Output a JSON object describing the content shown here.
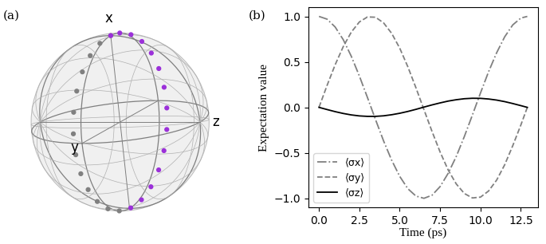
{
  "chart_data": [
    {
      "type": "bloch",
      "title": "(a)",
      "axis_labels": {
        "x": "x",
        "y": "y",
        "z": "z"
      },
      "colors": [
        "#808080",
        "#808080",
        "#808080",
        "#808080",
        "#808080",
        "#808080",
        "#808080",
        "#808080",
        "#808080",
        "#808080",
        "#808080",
        "#808080",
        "#808080",
        "#9b30d9",
        "#9b30d9",
        "#9b30d9",
        "#9b30d9",
        "#9b30d9",
        "#9b30d9",
        "#9b30d9",
        "#9b30d9",
        "#9b30d9",
        "#9b30d9",
        "#9b30d9",
        "#9b30d9",
        "#9b30d9",
        "#9b30d9"
      ]
    },
    {
      "type": "line",
      "title": "(b)",
      "x_label": "Time (ps)",
      "y_label": "Expectation value",
      "x": [
        0,
        0.5,
        1.0,
        1.5,
        2.0,
        2.5,
        3.0,
        3.5,
        4.0,
        4.5,
        5.0,
        5.5,
        6.0,
        6.5,
        7.0,
        7.5,
        8.0,
        8.5,
        9.0,
        9.5,
        10.0,
        10.5,
        11.0,
        11.5,
        12.0,
        12.5,
        12.9
      ],
      "series": [
        {
          "name": "⟨σx⟩",
          "color": "#808080",
          "line_style": "dashdot",
          "values": [
            1.0,
            0.97,
            0.884,
            0.745,
            0.562,
            0.345,
            0.109,
            -0.134,
            -0.369,
            -0.581,
            -0.759,
            -0.894,
            -0.975,
            -1.0,
            -0.966,
            -0.871,
            -0.725,
            -0.54,
            -0.321,
            -0.084,
            0.158,
            0.391,
            0.6,
            0.776,
            0.907,
            0.982,
            1.0
          ]
        },
        {
          "name": "⟨σy⟩",
          "color": "#808080",
          "line_style": "dashed",
          "values": [
            0.0,
            0.241,
            0.468,
            0.667,
            0.827,
            0.939,
            0.994,
            0.991,
            0.929,
            0.814,
            0.651,
            0.447,
            0.217,
            -0.025,
            -0.265,
            -0.491,
            -0.689,
            -0.842,
            -0.947,
            -0.996,
            -0.987,
            -0.92,
            -0.8,
            -0.631,
            -0.421,
            -0.194,
            0.0
          ]
        },
        {
          "name": "⟨σz⟩",
          "color": "#000000",
          "line_style": "solid",
          "values": [
            0.0,
            -0.024,
            -0.047,
            -0.067,
            -0.083,
            -0.094,
            -0.099,
            -0.099,
            -0.093,
            -0.081,
            -0.065,
            -0.045,
            -0.022,
            0.003,
            0.027,
            0.049,
            0.069,
            0.084,
            0.095,
            0.1,
            0.099,
            0.092,
            0.08,
            0.063,
            0.042,
            0.019,
            0.0
          ]
        }
      ],
      "xlim": [
        -0.65,
        13.55
      ],
      "ylim": [
        -1.1,
        1.1
      ],
      "xticks": [
        {
          "value": 0,
          "label": "0.0"
        },
        {
          "value": 2.5,
          "label": "2.5"
        },
        {
          "value": 5,
          "label": "5.0"
        },
        {
          "value": 7.5,
          "label": "7.5"
        },
        {
          "value": 10,
          "label": "10.0"
        },
        {
          "value": 12.5,
          "label": "12.5"
        }
      ],
      "yticks": [
        {
          "value": -1,
          "label": "−1.0"
        },
        {
          "value": -0.5,
          "label": "−0.5"
        },
        {
          "value": 0,
          "label": "0.0"
        },
        {
          "value": 0.5,
          "label": "0.5"
        },
        {
          "value": 1,
          "label": "1.0"
        }
      ],
      "legend": "lower left"
    }
  ]
}
